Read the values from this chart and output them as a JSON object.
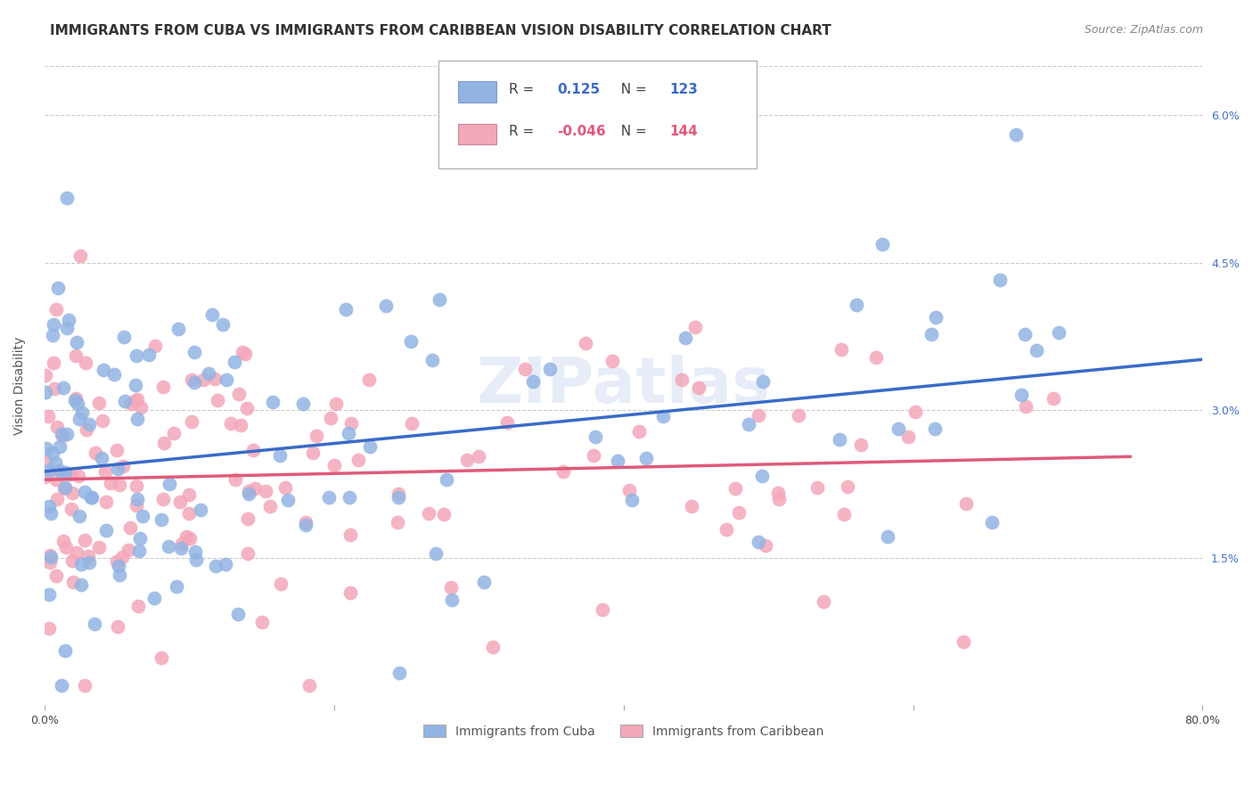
{
  "title": "IMMIGRANTS FROM CUBA VS IMMIGRANTS FROM CARIBBEAN VISION DISABILITY CORRELATION CHART",
  "source": "Source: ZipAtlas.com",
  "ylabel": "Vision Disability",
  "xlim": [
    0.0,
    0.8
  ],
  "ylim": [
    0.0,
    0.065
  ],
  "xticks": [
    0.0,
    0.2,
    0.4,
    0.6,
    0.8
  ],
  "xticklabels": [
    "0.0%",
    "",
    "",
    "",
    "80.0%"
  ],
  "yticks": [
    0.0,
    0.015,
    0.03,
    0.045,
    0.06
  ],
  "yticklabels": [
    "",
    "1.5%",
    "3.0%",
    "4.5%",
    "6.0%"
  ],
  "cuba_R": 0.125,
  "cuba_N": 123,
  "carib_R": -0.046,
  "carib_N": 144,
  "cuba_color": "#92b4e3",
  "carib_color": "#f4a7b9",
  "cuba_line_color": "#3a6bc7",
  "carib_line_color": "#e05a7a",
  "watermark": "ZIPatlas",
  "background_color": "#ffffff",
  "grid_color": "#cccccc",
  "title_color": "#333333",
  "right_tick_color": "#4472c4",
  "title_fontsize": 11,
  "source_fontsize": 9,
  "tick_fontsize": 9,
  "ylabel_fontsize": 10,
  "seed_cuba": 42,
  "seed_carib": 99
}
